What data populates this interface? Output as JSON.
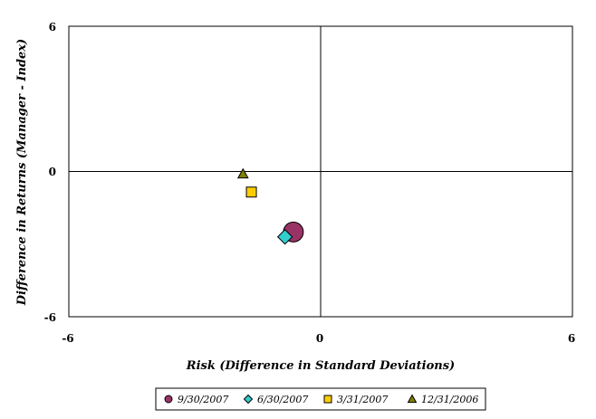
{
  "chart_data": {
    "type": "scatter",
    "xlabel": "Risk (Difference in Standard Deviations)",
    "ylabel": "Difference in Returns (Manager - Index)",
    "xlim": [
      -6,
      6
    ],
    "ylim": [
      -6,
      6
    ],
    "x_ticks": [
      "-6",
      "0",
      "6"
    ],
    "y_ticks": [
      "6",
      "0",
      "-6"
    ],
    "grid": false,
    "crosshair_at_origin": true,
    "legend_position": "bottom",
    "series": [
      {
        "name": "9/30/2007",
        "marker": "circle",
        "color": "#993366",
        "x": -0.65,
        "y": -2.5
      },
      {
        "name": "6/30/2007",
        "marker": "diamond",
        "color": "#33CCCC",
        "x": -0.85,
        "y": -2.7
      },
      {
        "name": "3/31/2007",
        "marker": "square",
        "color": "#FFCC00",
        "x": -1.65,
        "y": -0.85
      },
      {
        "name": "12/31/2006",
        "marker": "triangle",
        "color": "#808000",
        "x": -1.85,
        "y": -0.1
      }
    ]
  }
}
